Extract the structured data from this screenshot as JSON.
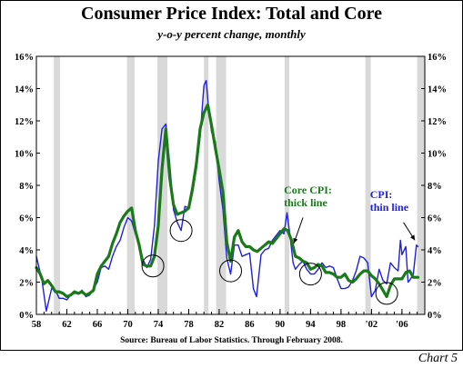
{
  "title": "Consumer Price Index: Total and Core",
  "subtitle": "y-o-y percent change, monthly",
  "source": "Source: Bureau of Labor Statistics. Through February 2008.",
  "chart_label": "Chart 5",
  "colors": {
    "cpi": "#1f1fe0",
    "core": "#1a7a1a",
    "recession": "#d9d9d9"
  },
  "chart_data": {
    "type": "line",
    "title": "Consumer Price Index: Total and Core",
    "subtitle": "y-o-y percent change, monthly",
    "xlim": [
      1958,
      2009
    ],
    "ylim": [
      0,
      16
    ],
    "grid": false,
    "x_ticks": [
      {
        "value": 1958,
        "label": "58"
      },
      {
        "value": 1962,
        "label": "62"
      },
      {
        "value": 1966,
        "label": "66"
      },
      {
        "value": 1970,
        "label": "70"
      },
      {
        "value": 1974,
        "label": "74"
      },
      {
        "value": 1978,
        "label": "78"
      },
      {
        "value": 1982,
        "label": "82"
      },
      {
        "value": 1986,
        "label": "86"
      },
      {
        "value": 1990,
        "label": "90"
      },
      {
        "value": 1994,
        "label": "94"
      },
      {
        "value": 1998,
        "label": "98"
      },
      {
        "value": 2002,
        "label": "'02"
      },
      {
        "value": 2006,
        "label": "'06"
      }
    ],
    "y_ticks": [
      {
        "value": 0,
        "label": "0%"
      },
      {
        "value": 2,
        "label": "2%"
      },
      {
        "value": 4,
        "label": "4%"
      },
      {
        "value": 6,
        "label": "6%"
      },
      {
        "value": 8,
        "label": "8%"
      },
      {
        "value": 10,
        "label": "10%"
      },
      {
        "value": 12,
        "label": "12%"
      },
      {
        "value": 14,
        "label": "14%"
      },
      {
        "value": 16,
        "label": "16%"
      }
    ],
    "recessions": [
      [
        1960.3,
        1961.1
      ],
      [
        1969.9,
        1970.9
      ],
      [
        1973.9,
        1975.2
      ],
      [
        1980.0,
        1980.6
      ],
      [
        1981.6,
        1982.9
      ],
      [
        1990.6,
        1991.2
      ],
      [
        2001.2,
        2001.9
      ],
      [
        2008.0,
        2009.0
      ]
    ],
    "series": [
      {
        "name": "CPI",
        "x": [
          1958.0,
          1958.3,
          1958.7,
          1959.0,
          1959.3,
          1959.6,
          1960.0,
          1960.5,
          1961.0,
          1961.5,
          1962.0,
          1962.5,
          1963.0,
          1963.5,
          1964.0,
          1964.5,
          1965.0,
          1965.5,
          1966.0,
          1966.5,
          1967.0,
          1967.5,
          1968.0,
          1968.5,
          1969.0,
          1969.5,
          1970.0,
          1970.5,
          1971.0,
          1971.5,
          1972.0,
          1972.5,
          1973.0,
          1973.5,
          1974.0,
          1974.5,
          1975.0,
          1975.5,
          1976.0,
          1976.5,
          1977.0,
          1977.5,
          1978.0,
          1978.5,
          1979.0,
          1979.5,
          1980.0,
          1980.3,
          1980.6,
          1981.0,
          1981.5,
          1982.0,
          1982.5,
          1983.0,
          1983.5,
          1984.0,
          1984.5,
          1985.0,
          1985.5,
          1986.0,
          1986.5,
          1986.9,
          1987.5,
          1988.0,
          1988.5,
          1989.0,
          1989.5,
          1990.0,
          1990.5,
          1990.9,
          1991.3,
          1991.7,
          1992.0,
          1992.5,
          1993.0,
          1993.5,
          1994.0,
          1994.5,
          1995.0,
          1995.5,
          1996.0,
          1996.5,
          1997.0,
          1997.5,
          1998.0,
          1998.5,
          1999.0,
          1999.5,
          2000.0,
          2000.5,
          2001.0,
          2001.5,
          2002.0,
          2002.5,
          2003.0,
          2003.5,
          2004.0,
          2004.5,
          2005.0,
          2005.5,
          2005.8,
          2006.0,
          2006.5,
          2006.8,
          2007.0,
          2007.5,
          2007.9,
          2008.1
        ],
        "values": [
          3.6,
          3.0,
          2.2,
          1.2,
          0.2,
          0.8,
          1.6,
          1.5,
          1.0,
          1.0,
          0.9,
          1.2,
          1.3,
          1.3,
          1.5,
          1.1,
          1.2,
          1.6,
          2.0,
          2.9,
          3.0,
          2.8,
          3.6,
          4.2,
          4.6,
          5.4,
          6.0,
          5.8,
          5.0,
          4.4,
          3.4,
          2.9,
          3.4,
          5.5,
          9.5,
          11.5,
          11.8,
          9.4,
          6.5,
          5.7,
          5.2,
          6.7,
          6.6,
          7.5,
          9.0,
          11.0,
          14.2,
          14.5,
          12.8,
          11.3,
          10.7,
          8.3,
          6.5,
          3.5,
          2.5,
          4.3,
          4.3,
          3.6,
          3.7,
          3.8,
          1.6,
          1.1,
          3.7,
          4.0,
          4.1,
          4.6,
          4.9,
          5.2,
          5.0,
          6.3,
          4.9,
          3.2,
          2.8,
          3.1,
          3.3,
          2.8,
          2.5,
          2.5,
          2.8,
          3.2,
          2.9,
          3.0,
          2.9,
          2.2,
          1.6,
          1.6,
          1.7,
          2.1,
          2.7,
          3.6,
          3.5,
          3.2,
          1.1,
          1.5,
          2.8,
          2.1,
          1.9,
          3.2,
          2.9,
          2.7,
          4.6,
          3.7,
          4.2,
          2.0,
          2.1,
          2.5,
          4.3,
          4.2
        ]
      },
      {
        "name": "Core CPI",
        "x": [
          1958.0,
          1958.5,
          1959.0,
          1959.5,
          1960.0,
          1960.5,
          1961.0,
          1961.5,
          1962.0,
          1962.5,
          1963.0,
          1963.5,
          1964.0,
          1964.5,
          1965.0,
          1965.5,
          1966.0,
          1966.5,
          1967.0,
          1967.5,
          1968.0,
          1968.5,
          1969.0,
          1969.5,
          1970.0,
          1970.5,
          1971.0,
          1971.5,
          1972.0,
          1972.5,
          1973.0,
          1973.5,
          1974.0,
          1974.5,
          1975.0,
          1975.5,
          1976.0,
          1976.5,
          1977.0,
          1977.5,
          1978.0,
          1978.5,
          1979.0,
          1979.5,
          1980.0,
          1980.5,
          1981.0,
          1981.5,
          1982.0,
          1982.5,
          1983.0,
          1983.5,
          1984.0,
          1984.5,
          1985.0,
          1985.5,
          1986.0,
          1986.5,
          1987.0,
          1987.5,
          1988.0,
          1988.5,
          1989.0,
          1989.5,
          1990.0,
          1990.5,
          1991.0,
          1991.5,
          1992.0,
          1992.5,
          1993.0,
          1993.5,
          1994.0,
          1994.5,
          1995.0,
          1995.5,
          1996.0,
          1996.5,
          1997.0,
          1997.5,
          1998.0,
          1998.5,
          1999.0,
          1999.5,
          2000.0,
          2000.5,
          2001.0,
          2001.5,
          2002.0,
          2002.5,
          2003.0,
          2003.5,
          2004.0,
          2004.5,
          2005.0,
          2005.5,
          2006.0,
          2006.5,
          2007.0,
          2007.5,
          2008.1
        ],
        "values": [
          2.9,
          2.5,
          1.9,
          2.1,
          1.8,
          1.4,
          1.4,
          1.3,
          1.1,
          1.2,
          1.4,
          1.3,
          1.4,
          1.2,
          1.3,
          1.5,
          2.5,
          3.0,
          3.3,
          3.6,
          4.4,
          5.0,
          5.7,
          6.1,
          6.4,
          6.6,
          5.2,
          4.3,
          3.1,
          3.0,
          3.0,
          3.6,
          5.5,
          9.0,
          11.5,
          8.5,
          6.8,
          6.2,
          6.3,
          6.4,
          6.6,
          7.8,
          9.3,
          11.5,
          12.5,
          13.0,
          11.7,
          10.3,
          9.0,
          7.6,
          4.5,
          3.3,
          4.8,
          5.2,
          4.5,
          4.2,
          4.2,
          4.0,
          3.9,
          4.1,
          4.3,
          4.5,
          4.4,
          4.7,
          5.0,
          5.3,
          5.2,
          4.6,
          3.6,
          3.5,
          3.3,
          3.2,
          2.8,
          2.9,
          3.1,
          3.0,
          2.6,
          2.6,
          2.5,
          2.3,
          2.3,
          2.5,
          2.1,
          2.0,
          2.2,
          2.5,
          2.7,
          2.7,
          2.4,
          2.2,
          1.9,
          1.5,
          1.1,
          1.8,
          2.2,
          2.2,
          2.2,
          2.6,
          2.7,
          2.3,
          2.3
        ]
      }
    ],
    "annotations": [
      {
        "text_lines": [
          "Core CPI:",
          "thick line"
        ],
        "series": "Core CPI"
      },
      {
        "text_lines": [
          "CPI:",
          "thin line"
        ],
        "series": "CPI"
      }
    ],
    "circles": [
      {
        "x": 1973.3,
        "y": 3.0
      },
      {
        "x": 1977.0,
        "y": 5.2
      },
      {
        "x": 1983.5,
        "y": 2.7
      },
      {
        "x": 1994.0,
        "y": 2.5
      },
      {
        "x": 2004.0,
        "y": 1.3
      }
    ]
  }
}
